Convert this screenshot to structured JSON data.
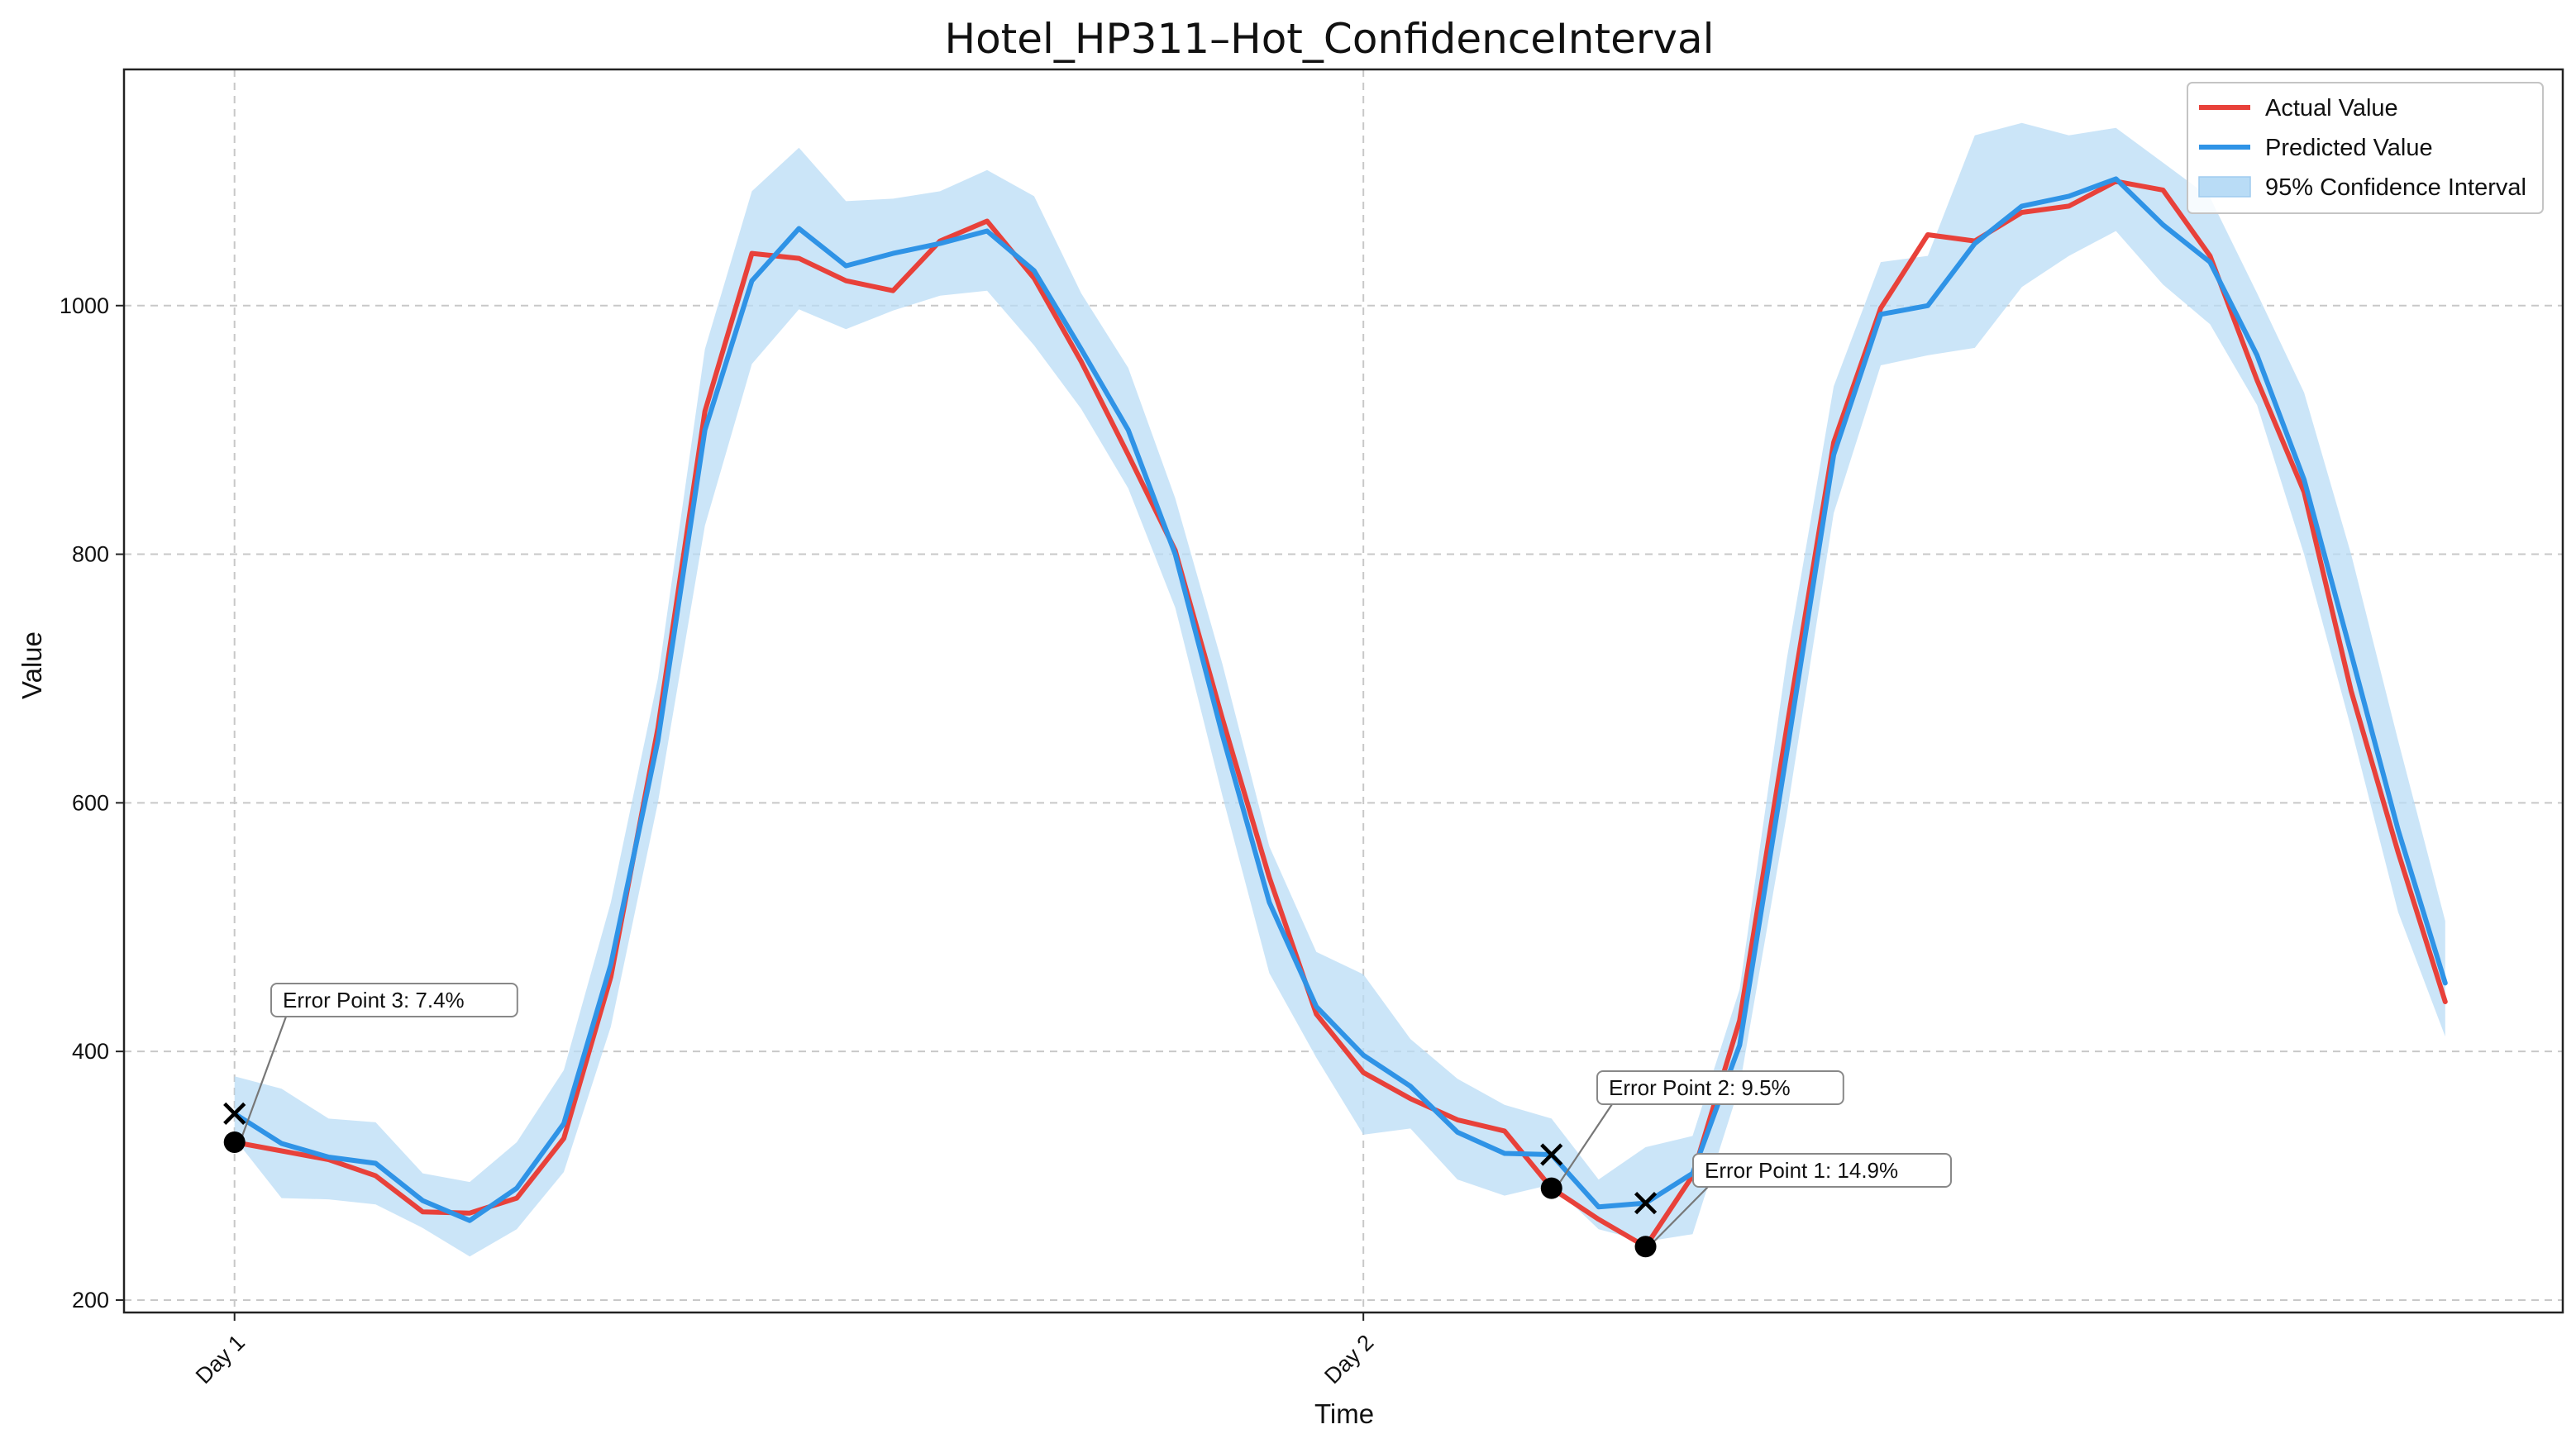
{
  "chart_data": {
    "type": "line",
    "title": "Hotel_HP311–Hot_ConfidenceInterval",
    "xlabel": "Time",
    "ylabel": "Value",
    "ylim": [
      190,
      1190
    ],
    "yticks": [
      200,
      400,
      600,
      800,
      1000
    ],
    "x_ticks": [
      {
        "label": "Day 1",
        "x": 0
      },
      {
        "label": "Day 2",
        "x": 24
      }
    ],
    "xlim": [
      -2.35,
      49.5
    ],
    "grid": true,
    "legend_position": "top-right",
    "colors": {
      "actual": "#e8413a",
      "predicted": "#2f93e6",
      "ci_fill": "#b9dcf6",
      "marker": "#000000"
    },
    "x": [
      0,
      1,
      2,
      3,
      4,
      5,
      6,
      7,
      8,
      9,
      10,
      11,
      12,
      13,
      14,
      15,
      16,
      17,
      18,
      19,
      20,
      21,
      22,
      23,
      24,
      25,
      26,
      27,
      28,
      29,
      30,
      31,
      32,
      33,
      34,
      35,
      36,
      37,
      38,
      39,
      40,
      41,
      42,
      43,
      44,
      45,
      46,
      47
    ],
    "series": [
      {
        "name": "Actual Value",
        "values": [
          327,
          320,
          313,
          300,
          271,
          270,
          282,
          330,
          460,
          660,
          915,
          1042,
          1038,
          1020,
          1012,
          1052,
          1068,
          1022,
          955,
          880,
          803,
          668,
          540,
          430,
          383,
          362,
          345,
          336,
          290,
          265,
          243,
          300,
          425,
          660,
          890,
          998,
          1057,
          1052,
          1075,
          1080,
          1100,
          1093,
          1040,
          940,
          850,
          690,
          560,
          440
        ]
      },
      {
        "name": "Predicted Value",
        "values": [
          350,
          326,
          315,
          310,
          280,
          264,
          290,
          342,
          470,
          650,
          900,
          1020,
          1062,
          1032,
          1042,
          1050,
          1060,
          1028,
          965,
          900,
          800,
          655,
          520,
          436,
          397,
          372,
          335,
          318,
          317,
          275,
          278,
          302,
          405,
          640,
          880,
          993,
          1000,
          1050,
          1080,
          1088,
          1102,
          1065,
          1035,
          960,
          860,
          720,
          578,
          455
        ]
      }
    ],
    "confidence_interval": {
      "name": "95% Confidence Interval",
      "lower": [
        330,
        282,
        281,
        277,
        258,
        235,
        257,
        303,
        420,
        600,
        823,
        953,
        997,
        981,
        996,
        1008,
        1012,
        968,
        917,
        853,
        757,
        606,
        463,
        395,
        333,
        338,
        297,
        284,
        293,
        257,
        247,
        253,
        372,
        590,
        833,
        952,
        960,
        966,
        1015,
        1040,
        1060,
        1017,
        985,
        920,
        800,
        660,
        512,
        412
      ],
      "upper": [
        380,
        370,
        346,
        343,
        302,
        295,
        327,
        385,
        520,
        700,
        965,
        1092,
        1127,
        1084,
        1086,
        1092,
        1109,
        1088,
        1010,
        950,
        845,
        712,
        565,
        480,
        462,
        410,
        378,
        357,
        346,
        297,
        323,
        332,
        450,
        715,
        935,
        1035,
        1040,
        1137,
        1147,
        1137,
        1143,
        1115,
        1087,
        1010,
        930,
        800,
        650,
        505
      ]
    },
    "annotations": [
      {
        "label": "Error Point 1: 14.9%",
        "x": 30,
        "actual": 243,
        "predicted": 278
      },
      {
        "label": "Error Point 2: 9.5%",
        "x": 28,
        "actual": 290,
        "predicted": 317
      },
      {
        "label": "Error Point 3: 7.4%",
        "x": 0,
        "actual": 327,
        "predicted": 350
      }
    ]
  }
}
